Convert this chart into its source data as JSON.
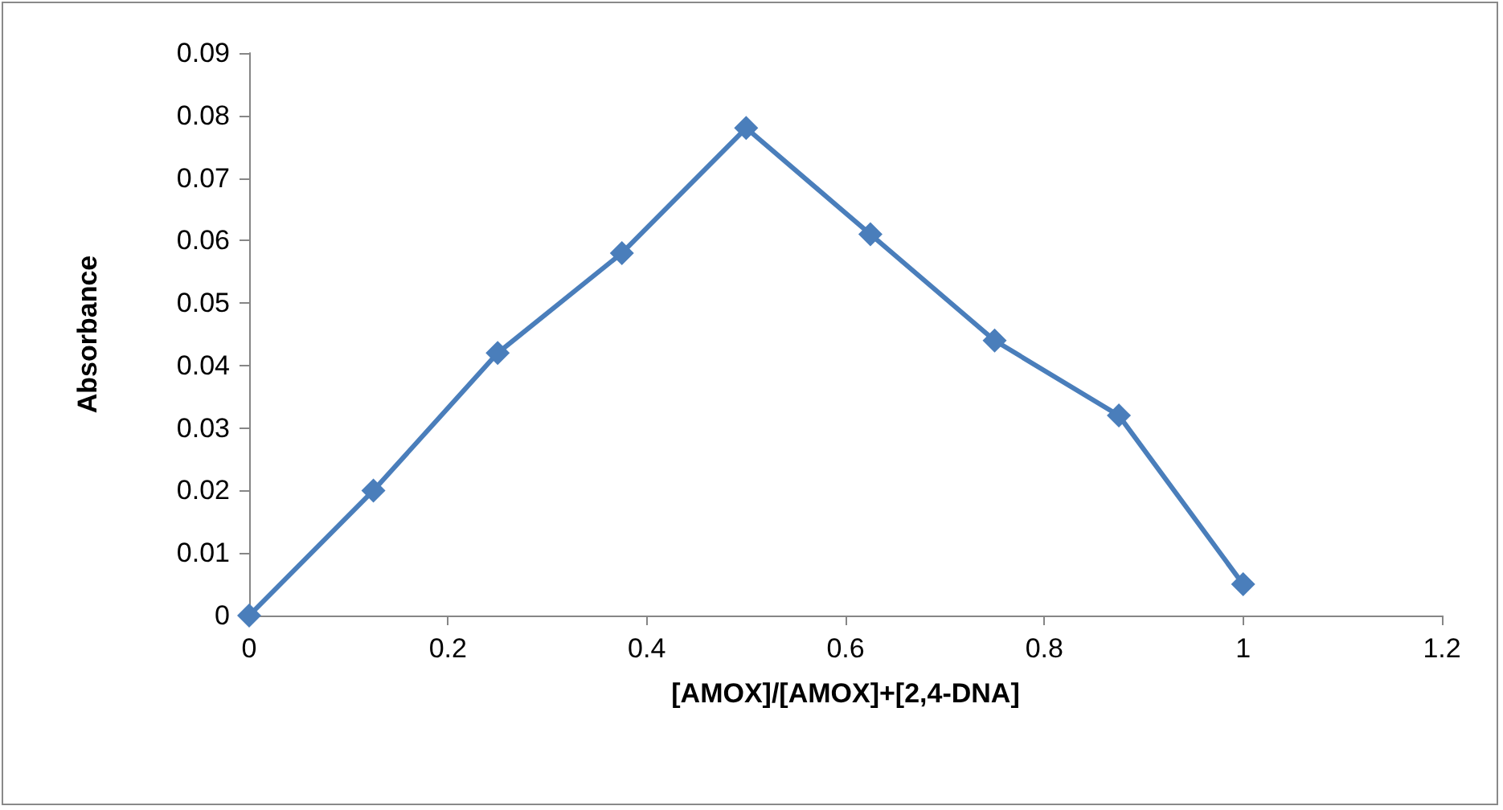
{
  "chart_data": {
    "type": "line",
    "xlabel": "[AMOX]/[AMOX]+[2,4-DNA]",
    "ylabel": "Absorbance",
    "x": [
      0,
      0.125,
      0.25,
      0.375,
      0.5,
      0.625,
      0.75,
      0.875,
      1
    ],
    "series": [
      {
        "color": "#4a7ebb",
        "values": [
          0,
          0.02,
          0.042,
          0.058,
          0.078,
          0.061,
          0.044,
          0.032,
          0.005
        ]
      }
    ],
    "xlim": [
      0,
      1.2
    ],
    "xticks": [
      0,
      0.2,
      0.4,
      0.6,
      0.8,
      1,
      1.2
    ],
    "ylim": [
      0,
      0.09
    ],
    "yticks": [
      0,
      0.01,
      0.02,
      0.03,
      0.04,
      0.05,
      0.06,
      0.07,
      0.08,
      0.09
    ],
    "marker": "diamond",
    "line_style": "solid"
  }
}
